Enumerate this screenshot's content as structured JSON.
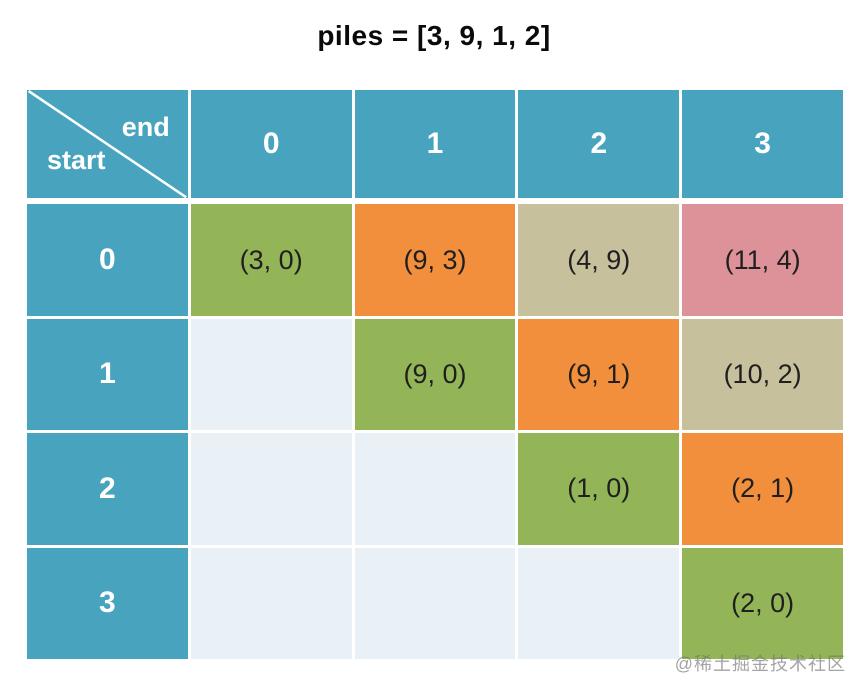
{
  "title": "piles = [3, 9, 1, 2]",
  "corner": {
    "end_label": "end",
    "start_label": "start"
  },
  "col_headers": [
    "0",
    "1",
    "2",
    "3"
  ],
  "rows": [
    {
      "header": "0",
      "cells": [
        {
          "text": "(3, 0)",
          "color": "green"
        },
        {
          "text": "(9, 3)",
          "color": "orange"
        },
        {
          "text": "(4, 9)",
          "color": "tan"
        },
        {
          "text": "(11, 4)",
          "color": "pink"
        }
      ]
    },
    {
      "header": "1",
      "cells": [
        {
          "text": "",
          "color": "empty"
        },
        {
          "text": "(9, 0)",
          "color": "green"
        },
        {
          "text": "(9, 1)",
          "color": "orange"
        },
        {
          "text": "(10, 2)",
          "color": "tan"
        }
      ]
    },
    {
      "header": "2",
      "cells": [
        {
          "text": "",
          "color": "empty"
        },
        {
          "text": "",
          "color": "empty"
        },
        {
          "text": "(1, 0)",
          "color": "green"
        },
        {
          "text": "(2, 1)",
          "color": "orange"
        }
      ]
    },
    {
      "header": "3",
      "cells": [
        {
          "text": "",
          "color": "empty"
        },
        {
          "text": "",
          "color": "empty"
        },
        {
          "text": "",
          "color": "empty"
        },
        {
          "text": "(2, 0)",
          "color": "green"
        }
      ]
    }
  ],
  "colors": {
    "header_teal": "#48A4BE",
    "green": "#94B557",
    "orange": "#F18F3C",
    "tan": "#C7C09C",
    "pink": "#DC9298",
    "empty": "#E9F0F6",
    "grid_white": "#FFFFFF",
    "cell_text": "#1F1F1F",
    "header_text": "#FFFFFF"
  },
  "watermark": "@稀土掘金技术社区"
}
